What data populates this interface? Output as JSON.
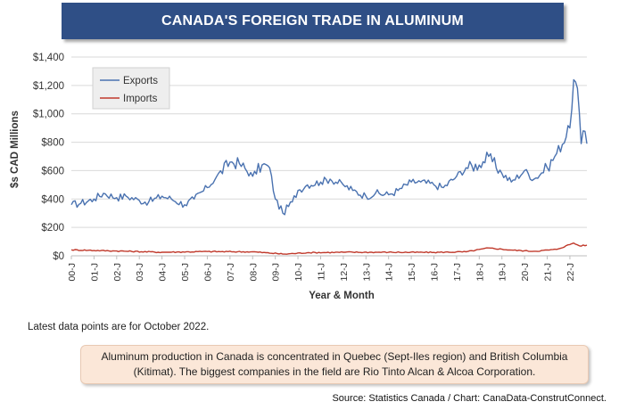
{
  "header": {
    "title": "CANADA'S FOREIGN TRADE IN ALUMINUM"
  },
  "chart_data": {
    "type": "line",
    "title": "CANADA'S FOREIGN TRADE IN ALUMINUM",
    "xlabel": "Year & Month",
    "ylabel": "$s CAD Millions",
    "ylim": [
      0,
      1400
    ],
    "yticks": [
      0,
      200,
      400,
      600,
      800,
      1000,
      1200,
      1400
    ],
    "ytick_labels": [
      "$0",
      "$200",
      "$400",
      "$600",
      "$800",
      "$1,000",
      "$1,200",
      "$1,400"
    ],
    "x_start": "2000-01",
    "x_end": "2022-10",
    "xtick_labels": [
      "00-J",
      "01-J",
      "02-J",
      "03-J",
      "04-J",
      "05-J",
      "06-J",
      "07-J",
      "08-J",
      "09-J",
      "10-J",
      "11-J",
      "12-J",
      "13-J",
      "14-J",
      "15-J",
      "16-J",
      "17-J",
      "18-J",
      "19-J",
      "20-J",
      "21-J",
      "22-J"
    ],
    "grid": "horizontal",
    "legend": "top-left",
    "series": [
      {
        "name": "Exports",
        "color": "#4a72b0",
        "anchors": [
          [
            "2000-01",
            360
          ],
          [
            "2000-06",
            370
          ],
          [
            "2001-01",
            400
          ],
          [
            "2001-06",
            440
          ],
          [
            "2002-01",
            410
          ],
          [
            "2002-06",
            420
          ],
          [
            "2003-01",
            390
          ],
          [
            "2003-06",
            380
          ],
          [
            "2004-01",
            420
          ],
          [
            "2004-06",
            400
          ],
          [
            "2005-01",
            360
          ],
          [
            "2005-06",
            400
          ],
          [
            "2006-01",
            480
          ],
          [
            "2006-06",
            560
          ],
          [
            "2007-01",
            660
          ],
          [
            "2007-06",
            650
          ],
          [
            "2008-01",
            560
          ],
          [
            "2008-06",
            640
          ],
          [
            "2008-10",
            620
          ],
          [
            "2009-01",
            400
          ],
          [
            "2009-05",
            300
          ],
          [
            "2009-10",
            380
          ],
          [
            "2010-01",
            460
          ],
          [
            "2010-06",
            500
          ],
          [
            "2011-01",
            520
          ],
          [
            "2011-06",
            540
          ],
          [
            "2012-01",
            500
          ],
          [
            "2012-06",
            460
          ],
          [
            "2013-01",
            420
          ],
          [
            "2013-06",
            440
          ],
          [
            "2014-01",
            430
          ],
          [
            "2014-06",
            460
          ],
          [
            "2015-01",
            520
          ],
          [
            "2015-06",
            520
          ],
          [
            "2016-01",
            500
          ],
          [
            "2016-06",
            480
          ],
          [
            "2017-01",
            560
          ],
          [
            "2017-06",
            620
          ],
          [
            "2018-01",
            640
          ],
          [
            "2018-06",
            700
          ],
          [
            "2019-01",
            580
          ],
          [
            "2019-06",
            520
          ],
          [
            "2020-01",
            600
          ],
          [
            "2020-06",
            540
          ],
          [
            "2021-01",
            620
          ],
          [
            "2021-06",
            720
          ],
          [
            "2022-01",
            900
          ],
          [
            "2022-03",
            1240
          ],
          [
            "2022-05",
            1180
          ],
          [
            "2022-07",
            790
          ],
          [
            "2022-08",
            880
          ],
          [
            "2022-10",
            790
          ]
        ]
      },
      {
        "name": "Imports",
        "color": "#c0392b",
        "anchors": [
          [
            "2000-01",
            42
          ],
          [
            "2002-01",
            34
          ],
          [
            "2004-01",
            25
          ],
          [
            "2006-01",
            30
          ],
          [
            "2008-01",
            28
          ],
          [
            "2009-06",
            12
          ],
          [
            "2010-06",
            22
          ],
          [
            "2012-01",
            25
          ],
          [
            "2014-01",
            25
          ],
          [
            "2016-01",
            24
          ],
          [
            "2017-06",
            28
          ],
          [
            "2018-06",
            55
          ],
          [
            "2019-06",
            40
          ],
          [
            "2020-06",
            32
          ],
          [
            "2021-06",
            45
          ],
          [
            "2022-03",
            90
          ],
          [
            "2022-06",
            70
          ],
          [
            "2022-10",
            75
          ]
        ]
      }
    ]
  },
  "notes": {
    "latest": "Latest data points are for October 2022."
  },
  "callout": {
    "text": "Aluminum production in Canada is concentrated in Quebec (Sept-Iles region) and British Columbia (Kitimat). The biggest companies in the field are Rio Tinto Alcan & Alcoa Corporation."
  },
  "source": {
    "text": "Source: Statistics Canada / Chart: CanaData-ConstrutConnect."
  }
}
